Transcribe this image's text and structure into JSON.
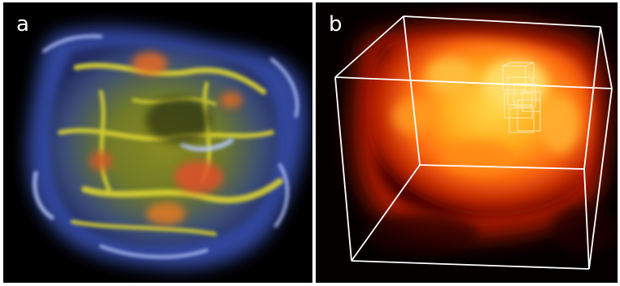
{
  "figure": {
    "panels": [
      {
        "label": "a",
        "content": "volume-rendering-blue-yellow"
      },
      {
        "label": "b",
        "content": "volume-rendering-hot-colormap-with-bounding-box"
      }
    ],
    "colors": {
      "panel_background": "#000000",
      "label_text": "#ffffff",
      "panel_a_edge": "#5a78e0",
      "panel_a_core": "#c8c828",
      "panel_a_hot": "#e05020",
      "panel_b_core": "#ffd040",
      "panel_b_mid": "#ff7010",
      "panel_b_edge": "#a01000",
      "bounding_box": "#ffffff"
    }
  }
}
